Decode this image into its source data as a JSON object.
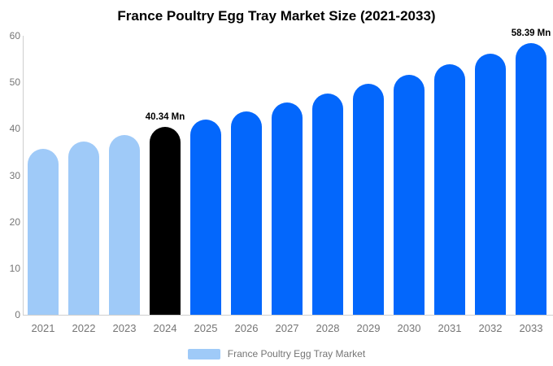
{
  "chart_data": {
    "type": "bar",
    "title": "France Poultry Egg Tray Market Size (2021-2033)",
    "xlabel": "",
    "ylabel": "",
    "ylim": [
      0,
      60
    ],
    "yticks": [
      0,
      10,
      20,
      30,
      40,
      50,
      60
    ],
    "grid": false,
    "categories": [
      "2021",
      "2022",
      "2023",
      "2024",
      "2025",
      "2026",
      "2027",
      "2028",
      "2029",
      "2030",
      "2031",
      "2032",
      "2033"
    ],
    "values": [
      35.7,
      37.2,
      38.7,
      40.34,
      42.0,
      43.8,
      45.6,
      47.6,
      49.6,
      51.6,
      53.8,
      56.1,
      58.39
    ],
    "bar_colors": [
      "#9FCAF8",
      "#9FCAF8",
      "#9FCAF8",
      "#000000",
      "#0367FC",
      "#0367FC",
      "#0367FC",
      "#0367FC",
      "#0367FC",
      "#0367FC",
      "#0367FC",
      "#0367FC",
      "#0367FC"
    ],
    "annotations": [
      {
        "category": "2024",
        "text": "40.34 Mn"
      },
      {
        "category": "2033",
        "text": "58.39 Mn"
      }
    ],
    "legend": {
      "position": "bottom",
      "label": "France Poultry Egg Tray Market",
      "swatch_color": "#9FCAF8"
    },
    "colors": {
      "past_bars": "#9FCAF8",
      "highlight_bar": "#000000",
      "forecast_bars": "#0367FC",
      "axis_text": "#757575",
      "axis_line": "#cfcfcf",
      "title_text": "#000000"
    }
  }
}
